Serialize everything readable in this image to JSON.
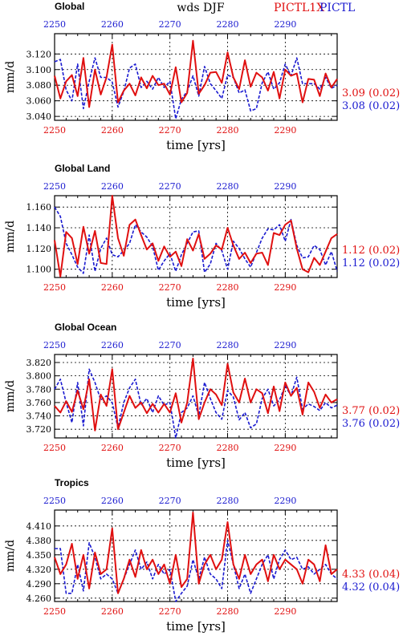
{
  "header": {
    "title": "wds  DJF",
    "legend_red": "PICTL1X",
    "legend_blue": "PICTL"
  },
  "colors": {
    "red": "#e01010",
    "blue": "#1a1ad0",
    "grid": "#000000"
  },
  "chart_data": [
    {
      "type": "line",
      "title": "Global",
      "xlabel": "time [yrs]",
      "ylabel": "mm/d",
      "xlim": [
        2250,
        2299
      ],
      "ylim": [
        3.035,
        3.146
      ],
      "yticks": [
        3.04,
        3.06,
        3.08,
        3.1,
        3.12
      ],
      "ytick_labels": [
        "3.040",
        "3.060",
        "3.080",
        "3.100",
        "3.120"
      ],
      "xticks": [
        2250,
        2260,
        2270,
        2280,
        2290
      ],
      "grid": true,
      "x": [
        2250,
        2251,
        2252,
        2253,
        2254,
        2255,
        2256,
        2257,
        2258,
        2259,
        2260,
        2261,
        2262,
        2263,
        2264,
        2265,
        2266,
        2267,
        2268,
        2269,
        2270,
        2271,
        2272,
        2273,
        2274,
        2275,
        2276,
        2277,
        2278,
        2279,
        2280,
        2281,
        2282,
        2283,
        2284,
        2285,
        2286,
        2287,
        2288,
        2289,
        2290,
        2291,
        2292,
        2293,
        2294,
        2295,
        2296,
        2297,
        2298,
        2299
      ],
      "series": [
        {
          "name": "PICTL1X",
          "color": "red",
          "stat": "3.09 (0.02)",
          "values": [
            3.092,
            3.063,
            3.085,
            3.093,
            3.066,
            3.115,
            3.052,
            3.1,
            3.068,
            3.09,
            3.132,
            3.058,
            3.073,
            3.082,
            3.067,
            3.09,
            3.076,
            3.092,
            3.08,
            3.082,
            3.068,
            3.103,
            3.058,
            3.07,
            3.137,
            3.069,
            3.08,
            3.096,
            3.097,
            3.083,
            3.122,
            3.09,
            3.075,
            3.112,
            3.078,
            3.096,
            3.09,
            3.073,
            3.097,
            3.063,
            3.1,
            3.092,
            3.095,
            3.058,
            3.088,
            3.087,
            3.066,
            3.095,
            3.077,
            3.088
          ]
        },
        {
          "name": "PICTL",
          "color": "blue",
          "stat": "3.08 (0.02)",
          "values": [
            3.11,
            3.113,
            3.074,
            3.06,
            3.107,
            3.05,
            3.085,
            3.115,
            3.09,
            3.09,
            3.084,
            3.052,
            3.072,
            3.102,
            3.107,
            3.077,
            3.085,
            3.075,
            3.09,
            3.077,
            3.085,
            3.037,
            3.062,
            3.072,
            3.092,
            3.066,
            3.104,
            3.082,
            3.073,
            3.063,
            3.093,
            3.09,
            3.07,
            3.074,
            3.047,
            3.05,
            3.083,
            3.097,
            3.075,
            3.083,
            3.107,
            3.092,
            3.115,
            3.082,
            3.082,
            3.082,
            3.075,
            3.09,
            3.076,
            3.08
          ]
        }
      ]
    },
    {
      "type": "line",
      "title": "Global Land",
      "xlabel": "time [yrs]",
      "ylabel": "mm/d",
      "xlim": [
        2250,
        2299
      ],
      "ylim": [
        1.092,
        1.171
      ],
      "yticks": [
        1.1,
        1.12,
        1.14,
        1.16
      ],
      "ytick_labels": [
        "1.100",
        "1.120",
        "1.140",
        "1.160"
      ],
      "xticks": [
        2250,
        2260,
        2270,
        2280,
        2290
      ],
      "grid": true,
      "x": [
        2250,
        2251,
        2252,
        2253,
        2254,
        2255,
        2256,
        2257,
        2258,
        2259,
        2260,
        2261,
        2262,
        2263,
        2264,
        2265,
        2266,
        2267,
        2268,
        2269,
        2270,
        2271,
        2272,
        2273,
        2274,
        2275,
        2276,
        2277,
        2278,
        2279,
        2280,
        2281,
        2282,
        2283,
        2284,
        2285,
        2286,
        2287,
        2288,
        2289,
        2290,
        2291,
        2292,
        2293,
        2294,
        2295,
        2296,
        2297,
        2298,
        2299
      ],
      "series": [
        {
          "name": "PICTL1X",
          "color": "red",
          "stat": "1.12 (0.02)",
          "values": [
            1.128,
            1.093,
            1.136,
            1.13,
            1.105,
            1.141,
            1.115,
            1.137,
            1.106,
            1.105,
            1.171,
            1.13,
            1.113,
            1.143,
            1.148,
            1.133,
            1.119,
            1.125,
            1.108,
            1.122,
            1.112,
            1.117,
            1.103,
            1.129,
            1.118,
            1.134,
            1.11,
            1.115,
            1.123,
            1.119,
            1.14,
            1.123,
            1.11,
            1.116,
            1.106,
            1.115,
            1.116,
            1.104,
            1.135,
            1.133,
            1.143,
            1.147,
            1.12,
            1.1,
            1.097,
            1.111,
            1.104,
            1.117,
            1.13,
            1.134
          ]
        },
        {
          "name": "PICTL",
          "color": "blue",
          "stat": "1.12 (0.02)",
          "values": [
            1.16,
            1.151,
            1.125,
            1.114,
            1.102,
            1.096,
            1.133,
            1.098,
            1.12,
            1.13,
            1.114,
            1.112,
            1.118,
            1.125,
            1.143,
            1.136,
            1.131,
            1.122,
            1.099,
            1.108,
            1.115,
            1.098,
            1.114,
            1.125,
            1.136,
            1.137,
            1.097,
            1.105,
            1.125,
            1.118,
            1.1,
            1.127,
            1.12,
            1.11,
            1.102,
            1.116,
            1.13,
            1.139,
            1.138,
            1.143,
            1.127,
            1.148,
            1.123,
            1.111,
            1.112,
            1.123,
            1.119,
            1.104,
            1.117,
            1.098
          ]
        }
      ]
    },
    {
      "type": "line",
      "title": "Global Ocean",
      "xlabel": "time [yrs]",
      "ylabel": "mm/d",
      "xlim": [
        2250,
        2299
      ],
      "ylim": [
        3.707,
        3.832
      ],
      "yticks": [
        3.72,
        3.74,
        3.76,
        3.78,
        3.8,
        3.82
      ],
      "ytick_labels": [
        "3.720",
        "3.740",
        "3.760",
        "3.780",
        "3.800",
        "3.820"
      ],
      "xticks": [
        2250,
        2260,
        2270,
        2280,
        2290
      ],
      "grid": true,
      "x": [
        2250,
        2251,
        2252,
        2253,
        2254,
        2255,
        2256,
        2257,
        2258,
        2259,
        2260,
        2261,
        2262,
        2263,
        2264,
        2265,
        2266,
        2267,
        2268,
        2269,
        2270,
        2271,
        2272,
        2273,
        2274,
        2275,
        2276,
        2277,
        2278,
        2279,
        2280,
        2281,
        2282,
        2283,
        2284,
        2285,
        2286,
        2287,
        2288,
        2289,
        2290,
        2291,
        2292,
        2293,
        2294,
        2295,
        2296,
        2297,
        2298,
        2299
      ],
      "series": [
        {
          "name": "PICTL1X",
          "color": "red",
          "stat": "3.77 (0.02)",
          "values": [
            3.755,
            3.745,
            3.762,
            3.746,
            3.778,
            3.75,
            3.795,
            3.718,
            3.772,
            3.755,
            3.81,
            3.72,
            3.745,
            3.77,
            3.752,
            3.76,
            3.744,
            3.758,
            3.745,
            3.758,
            3.745,
            3.774,
            3.73,
            3.76,
            3.826,
            3.735,
            3.76,
            3.78,
            3.772,
            3.756,
            3.818,
            3.775,
            3.76,
            3.796,
            3.76,
            3.78,
            3.774,
            3.744,
            3.784,
            3.747,
            3.79,
            3.77,
            3.782,
            3.742,
            3.79,
            3.776,
            3.752,
            3.772,
            3.76,
            3.765
          ]
        },
        {
          "name": "PICTL",
          "color": "blue",
          "stat": "3.76 (0.02)",
          "values": [
            3.78,
            3.795,
            3.76,
            3.73,
            3.79,
            3.725,
            3.81,
            3.79,
            3.764,
            3.77,
            3.76,
            3.722,
            3.76,
            3.782,
            3.795,
            3.756,
            3.766,
            3.745,
            3.77,
            3.756,
            3.76,
            3.707,
            3.745,
            3.752,
            3.77,
            3.74,
            3.79,
            3.766,
            3.745,
            3.735,
            3.778,
            3.768,
            3.734,
            3.745,
            3.722,
            3.728,
            3.766,
            3.78,
            3.755,
            3.764,
            3.785,
            3.77,
            3.798,
            3.75,
            3.758,
            3.754,
            3.748,
            3.76,
            3.752,
            3.756
          ]
        }
      ]
    },
    {
      "type": "line",
      "title": "Tropics",
      "xlabel": "time [yrs]",
      "ylabel": "mm/d",
      "xlim": [
        2250,
        2299
      ],
      "ylim": [
        4.253,
        4.443
      ],
      "yticks": [
        4.26,
        4.29,
        4.32,
        4.35,
        4.38,
        4.41
      ],
      "ytick_labels": [
        "4.260",
        "4.290",
        "4.320",
        "4.350",
        "4.380",
        "4.410"
      ],
      "xticks": [
        2250,
        2260,
        2270,
        2280,
        2290
      ],
      "grid": true,
      "x": [
        2250,
        2251,
        2252,
        2253,
        2254,
        2255,
        2256,
        2257,
        2258,
        2259,
        2260,
        2261,
        2262,
        2263,
        2264,
        2265,
        2266,
        2267,
        2268,
        2269,
        2270,
        2271,
        2272,
        2273,
        2274,
        2275,
        2276,
        2277,
        2278,
        2279,
        2280,
        2281,
        2282,
        2283,
        2284,
        2285,
        2286,
        2287,
        2288,
        2289,
        2290,
        2291,
        2292,
        2293,
        2294,
        2295,
        2296,
        2297,
        2298,
        2299
      ],
      "series": [
        {
          "name": "PICTL1X",
          "color": "red",
          "stat": "4.33 (0.04)",
          "values": [
            4.345,
            4.31,
            4.33,
            4.373,
            4.3,
            4.35,
            4.28,
            4.355,
            4.31,
            4.32,
            4.405,
            4.27,
            4.3,
            4.34,
            4.304,
            4.36,
            4.32,
            4.34,
            4.31,
            4.33,
            4.29,
            4.35,
            4.283,
            4.3,
            4.438,
            4.29,
            4.33,
            4.35,
            4.32,
            4.34,
            4.418,
            4.33,
            4.3,
            4.35,
            4.31,
            4.33,
            4.34,
            4.295,
            4.35,
            4.32,
            4.34,
            4.33,
            4.32,
            4.29,
            4.34,
            4.33,
            4.295,
            4.37,
            4.31,
            4.32
          ]
        },
        {
          "name": "PICTL",
          "color": "blue",
          "stat": "4.32 (0.04)",
          "values": [
            4.363,
            4.363,
            4.27,
            4.27,
            4.33,
            4.275,
            4.375,
            4.345,
            4.3,
            4.31,
            4.3,
            4.27,
            4.3,
            4.33,
            4.36,
            4.32,
            4.335,
            4.3,
            4.33,
            4.31,
            4.32,
            4.253,
            4.27,
            4.285,
            4.34,
            4.3,
            4.345,
            4.31,
            4.3,
            4.28,
            4.38,
            4.33,
            4.28,
            4.31,
            4.27,
            4.3,
            4.33,
            4.35,
            4.3,
            4.34,
            4.36,
            4.34,
            4.345,
            4.32,
            4.325,
            4.31,
            4.32,
            4.33,
            4.31,
            4.3
          ]
        }
      ]
    }
  ]
}
